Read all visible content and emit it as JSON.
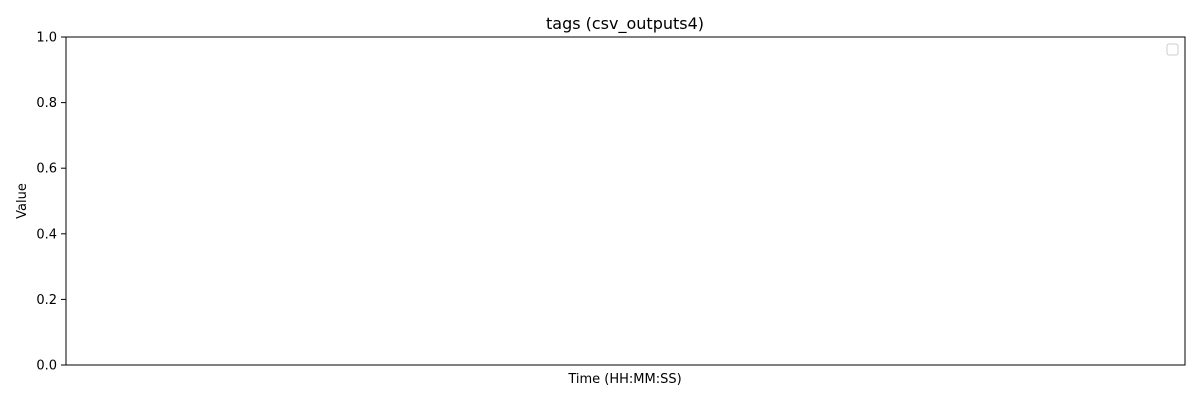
{
  "chart_data": {
    "type": "line",
    "title": "tags (csv_outputs4)",
    "xlabel": "Time (HH:MM:SS)",
    "ylabel": "Value",
    "ylim": [
      0,
      1
    ],
    "yticks": [
      "0.0",
      "0.2",
      "0.4",
      "0.6",
      "0.8",
      "1.0"
    ],
    "xticks": [],
    "series": [],
    "grid": false,
    "legend": "top-right"
  }
}
